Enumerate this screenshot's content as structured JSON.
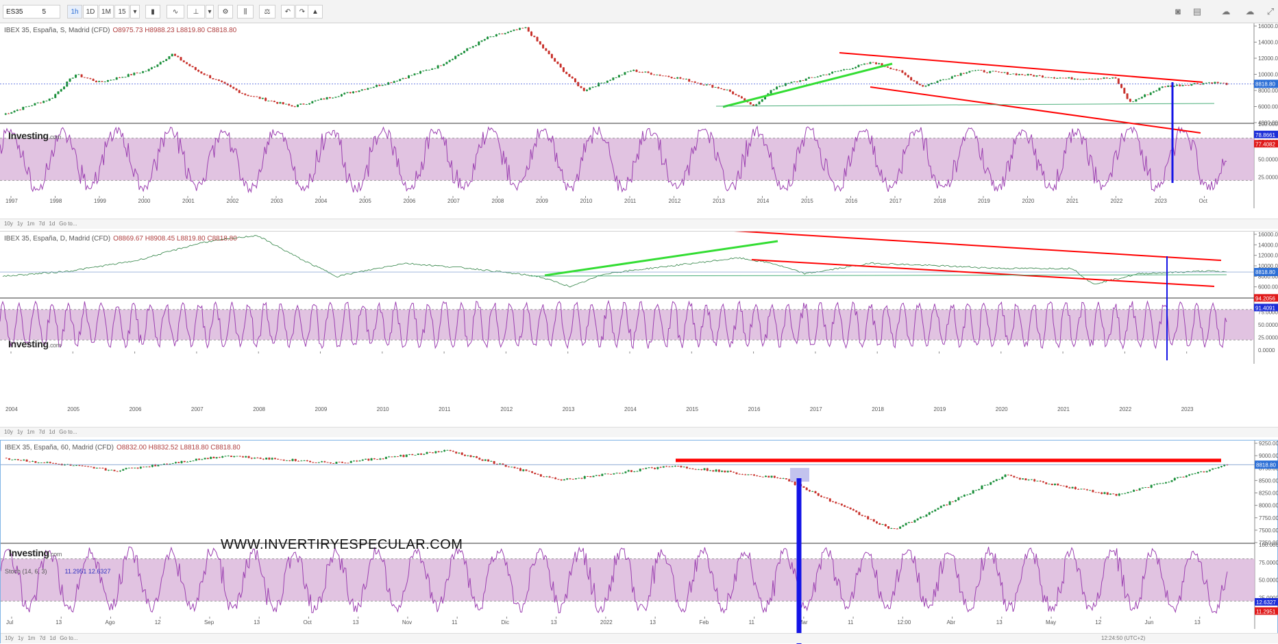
{
  "toolbar": {
    "symbol": "ES35",
    "symbol_suffix": "5",
    "intervals": [
      "1h",
      "1D",
      "1M",
      "15"
    ],
    "active_interval": "1h"
  },
  "panels": [
    {
      "header": "IBEX 35, España, S, Madrid (CFD)",
      "ohlc": "O8975.73  H8988.23  L8819.80  C8818.80",
      "price_ticks": [
        "16000.00",
        "14000.00",
        "12000.00",
        "10000.00",
        "8000.00",
        "6000.00",
        "4000.00"
      ],
      "price_badge": "8818.80",
      "osc_ticks": [
        "100.000",
        "75.0000",
        "50.0000",
        "25.0000"
      ],
      "osc_badges": [
        "78.8661",
        "77.4082"
      ],
      "time_ticks": [
        "1997",
        "1998",
        "1999",
        "2000",
        "2001",
        "2002",
        "2003",
        "2004",
        "2005",
        "2006",
        "2007",
        "2008",
        "2009",
        "2010",
        "2011",
        "2012",
        "2013",
        "2014",
        "2015",
        "2016",
        "2017",
        "2018",
        "2019",
        "2020",
        "2021",
        "2022",
        "2023",
        "Oct"
      ],
      "footer": [
        "10y",
        "1y",
        "1m",
        "7d",
        "1d",
        "Go to..."
      ]
    },
    {
      "header": "IBEX 35, España, D, Madrid (CFD)",
      "ohlc": "O8869.67  H8908.45  L8819.80  C8818.80",
      "price_ticks": [
        "16000.00",
        "14000.00",
        "12000.00",
        "10000.00",
        "8000.00",
        "6000.00",
        "4000.00"
      ],
      "price_badge": "8818.80",
      "osc_ticks": [
        "75.0000",
        "50.0000",
        "25.0000",
        "0.0000"
      ],
      "osc_badges": [
        "94.2056",
        "91.4091"
      ],
      "time_ticks": [
        "2004",
        "2005",
        "2006",
        "2007",
        "2008",
        "2009",
        "2010",
        "2011",
        "2012",
        "2013",
        "2014",
        "2015",
        "2016",
        "2017",
        "2018",
        "2019",
        "2020",
        "2021",
        "2022",
        "2023"
      ],
      "footer": [
        "10y",
        "1y",
        "1m",
        "7d",
        "1d",
        "Go to..."
      ]
    },
    {
      "header": "IBEX 35, España, 60, Madrid (CFD)",
      "ohlc": "O8832.00  H8832.52  L8818.80  C8818.80",
      "price_ticks": [
        "9250.00",
        "9000.00",
        "8750.00",
        "8500.00",
        "8250.00",
        "8000.00",
        "7750.00",
        "7500.00",
        "7250.00"
      ],
      "price_badge": "8818.80",
      "osc_label": "Stoch (14, 6, 3)",
      "osc_values": "11.2951  12.6327",
      "osc_ticks": [
        "100.000",
        "75.0000",
        "50.0000",
        "25.0000"
      ],
      "osc_badges": [
        "12.6327",
        "11.2951"
      ],
      "time_ticks": [
        "Jul",
        "13",
        "Ago",
        "12",
        "Sep",
        "13",
        "Oct",
        "13",
        "Nov",
        "11",
        "Dic",
        "13",
        "2022",
        "13",
        "Feb",
        "11",
        "Mar",
        "11",
        "12:00",
        "Abr",
        "13",
        "May",
        "12",
        "Jun",
        "13"
      ],
      "footer": [
        "10y",
        "1y",
        "1m",
        "7d",
        "1d",
        "Go to..."
      ],
      "clock": "12:24:50 (UTC+2)"
    }
  ],
  "logo": {
    "main": "Investing",
    "suffix": ".com"
  },
  "watermark": "WWW.INVERTIRYESPECULAR.COM",
  "colors": {
    "candle_up": "#1a8f3a",
    "candle_down": "#c8302a",
    "trend_red": "#ff0000",
    "trend_green": "#33dd33",
    "marker_blue": "#1414e6",
    "osc_line": "#9b3fb0",
    "osc_band": "#dcb8dc"
  },
  "chart_data": [
    {
      "type": "line",
      "title": "IBEX 35, España, S, Madrid (CFD)",
      "x_range": [
        "1997",
        "2022"
      ],
      "y_range": [
        4000,
        16000
      ],
      "x": [
        1997,
        1998,
        1998.5,
        1999,
        2000,
        2000.5,
        2001,
        2002,
        2003,
        2004,
        2005,
        2006,
        2007,
        2007.8,
        2008.5,
        2009,
        2010,
        2011,
        2012,
        2012.5,
        2013,
        2014,
        2015,
        2015.5,
        2016,
        2017,
        2018,
        2019,
        2020,
        2020.3,
        2021,
        2022,
        2022.3
      ],
      "values": [
        5000,
        7000,
        10000,
        9000,
        10500,
        12500,
        10500,
        7500,
        6000,
        7500,
        9000,
        11000,
        14500,
        15800,
        11000,
        8000,
        10500,
        9500,
        8000,
        6000,
        8500,
        10000,
        11500,
        10500,
        8500,
        10500,
        10000,
        9500,
        9500,
        6500,
        8500,
        9000,
        8818.8
      ]
    },
    {
      "type": "line",
      "title": "IBEX 35, España, D, Madrid (CFD)",
      "x_range": [
        "2004",
        "2022"
      ],
      "y_range": [
        4000,
        16000
      ],
      "x": [
        2004,
        2005,
        2006,
        2007,
        2007.8,
        2008.5,
        2009,
        2010,
        2011,
        2012,
        2012.5,
        2013,
        2014,
        2015,
        2015.5,
        2016,
        2017,
        2018,
        2019,
        2020,
        2020.3,
        2021,
        2022,
        2022.3
      ],
      "values": [
        8000,
        9000,
        11000,
        14500,
        15800,
        11000,
        8000,
        10500,
        9500,
        8000,
        6000,
        8500,
        10000,
        11500,
        10500,
        8500,
        10500,
        10000,
        9500,
        9500,
        6500,
        8500,
        9000,
        8818.8
      ]
    },
    {
      "type": "line",
      "title": "IBEX 35, España, 60, Madrid (CFD)",
      "x_range": [
        "Jul",
        "Jun"
      ],
      "y_range": [
        7250,
        9250
      ],
      "x": [
        "Jul",
        "Ago",
        "Sep",
        "Oct",
        "Nov",
        "Dic",
        "2022",
        "Feb",
        "Mar",
        "Abr",
        "May",
        "Jun"
      ],
      "values": [
        8950,
        8700,
        9000,
        8850,
        9100,
        8500,
        8800,
        8550,
        7500,
        8600,
        8200,
        8818.8
      ]
    }
  ]
}
